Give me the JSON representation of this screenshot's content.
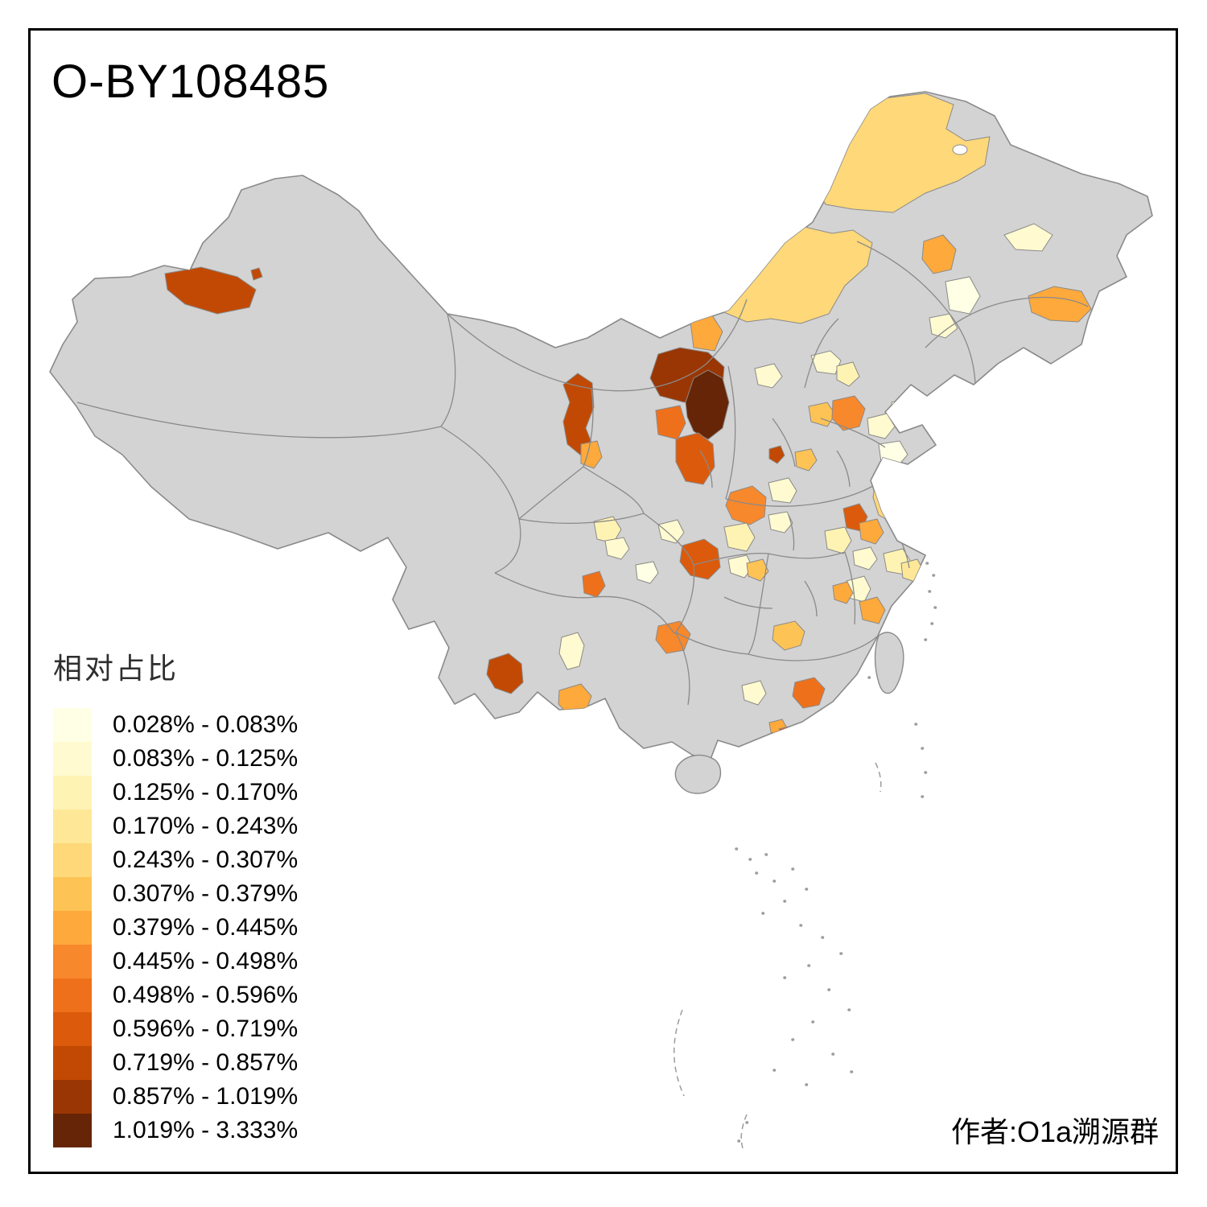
{
  "frame": {
    "title": "O-BY108485",
    "attribution": "作者:O1a溯源群"
  },
  "legend": {
    "title": "相对占比",
    "items": [
      {
        "range": "0.028% - 0.083%",
        "color": "#FFFFE5"
      },
      {
        "range": "0.083% - 0.125%",
        "color": "#FFFAD0"
      },
      {
        "range": "0.125% - 0.170%",
        "color": "#FFF3B4"
      },
      {
        "range": "0.170% - 0.243%",
        "color": "#FEE897"
      },
      {
        "range": "0.243% - 0.307%",
        "color": "#FED879"
      },
      {
        "range": "0.307% - 0.379%",
        "color": "#FEC355"
      },
      {
        "range": "0.379% - 0.445%",
        "color": "#FEA93B"
      },
      {
        "range": "0.445% - 0.498%",
        "color": "#F8882C"
      },
      {
        "range": "0.498% - 0.596%",
        "color": "#EF701B"
      },
      {
        "range": "0.596% - 0.719%",
        "color": "#DC5A0B"
      },
      {
        "range": "0.719% - 0.857%",
        "color": "#C24903"
      },
      {
        "range": "0.857% - 1.019%",
        "color": "#9A3603"
      },
      {
        "range": "1.019% - 3.333%",
        "color": "#662506"
      }
    ]
  },
  "map": {
    "land_color": "#D3D3D3",
    "border_color": "#8A8A8A",
    "sea_color": "#FFFFFF",
    "island_color": "#9C9C9C"
  },
  "chart_data": {
    "type": "choropleth",
    "title": "O-BY108485",
    "legend_title": "相对占比",
    "geography": "China prefecture-level map",
    "value_unit": "%",
    "class_breaks": [
      0.028,
      0.083,
      0.125,
      0.17,
      0.243,
      0.307,
      0.379,
      0.445,
      0.498,
      0.596,
      0.719,
      0.857,
      1.019,
      3.333
    ],
    "classes": [
      "0.028% - 0.083%",
      "0.083% - 0.125%",
      "0.125% - 0.170%",
      "0.170% - 0.243%",
      "0.243% - 0.307%",
      "0.307% - 0.379%",
      "0.379% - 0.445%",
      "0.445% - 0.498%",
      "0.498% - 0.596%",
      "0.596% - 0.719%",
      "0.719% - 0.857%",
      "0.857% - 1.019%",
      "1.019% - 3.333%"
    ],
    "palette": [
      "#FFFFE5",
      "#FFFAD0",
      "#FFF3B4",
      "#FEE897",
      "#FED879",
      "#FEC355",
      "#FEA93B",
      "#F8882C",
      "#EF701B",
      "#DC5A0B",
      "#C24903",
      "#9A3603",
      "#662506"
    ],
    "no_data_color": "#D3D3D3",
    "attribution": "作者:O1a溯源群"
  }
}
